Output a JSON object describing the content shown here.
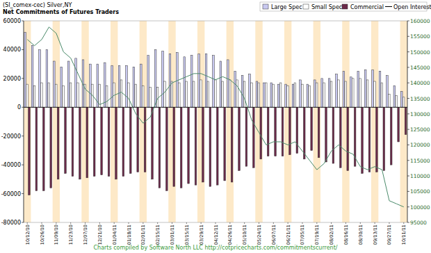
{
  "chart_data": {
    "type": "bar",
    "title": "(SI_comex-cec) Silver,NY",
    "subtitle": "Net Commitments of Futures Traders",
    "annotations": [
      "Charts compiled by Software North LLC  http://cotpricecharts.com/commitmentscurrent/"
    ],
    "categories": [
      "10/12/10",
      null,
      "10/26/10",
      null,
      "11/09/10",
      null,
      "11/23/10",
      null,
      "12/07/10",
      null,
      "12/21/10",
      null,
      "01/04/11",
      null,
      "01/18/11",
      null,
      "02/01/11",
      null,
      "02/15/11",
      null,
      "03/01/11",
      null,
      "03/15/11",
      null,
      "03/29/11",
      null,
      "04/12/11",
      null,
      "04/26/11",
      null,
      "05/10/11",
      null,
      "05/24/11",
      null,
      "06/07/11",
      null,
      "06/21/11",
      null,
      "07/05/11",
      null,
      "07/19/11",
      null,
      "08/02/11",
      null,
      "08/16/11",
      null,
      "08/30/11",
      null,
      "09/13/11",
      null,
      "09/27/11",
      null,
      "10/11/11"
    ],
    "series": [
      {
        "name": "Large Spec",
        "type": "bar",
        "color": "#c8c8f0",
        "values": [
          52000,
          43000,
          40000,
          40000,
          32000,
          28000,
          32000,
          34000,
          33000,
          30000,
          30000,
          31000,
          29000,
          29000,
          29000,
          28000,
          30000,
          36000,
          40000,
          39000,
          37000,
          38000,
          35000,
          36000,
          37000,
          37000,
          36000,
          32000,
          33000,
          25000,
          22000,
          23000,
          18000,
          17000,
          17000,
          16000,
          16000,
          16000,
          19000,
          16000,
          19000,
          20000,
          20000,
          23000,
          25000,
          21000,
          25000,
          26000,
          26000,
          25000,
          22000,
          15000,
          11000
        ]
      },
      {
        "name": "Small Spec",
        "type": "bar",
        "color": "#ffffff",
        "values": [
          16000,
          15000,
          17000,
          17000,
          16000,
          15000,
          17000,
          17000,
          16000,
          16000,
          16000,
          15000,
          17000,
          19000,
          17000,
          16000,
          15000,
          14000,
          14000,
          18000,
          18000,
          17000,
          18000,
          18000,
          19000,
          18000,
          19000,
          18000,
          19000,
          19000,
          18000,
          17000,
          17000,
          17000,
          16000,
          17000,
          15000,
          17000,
          16000,
          15000,
          17000,
          17000,
          18000,
          19000,
          18000,
          20000,
          20000,
          19000,
          18000,
          17000,
          9000,
          8000,
          7000
        ]
      },
      {
        "name": "Commercial",
        "type": "bar",
        "color": "#6b2a4a",
        "values": [
          -61000,
          -58000,
          -58000,
          -56000,
          -50000,
          -46000,
          -48000,
          -50000,
          -49000,
          -48000,
          -47000,
          -48000,
          -50000,
          -48000,
          -46000,
          -45000,
          -45000,
          -50000,
          -56000,
          -58000,
          -55000,
          -56000,
          -53000,
          -54000,
          -52000,
          -55000,
          -54000,
          -51000,
          -52000,
          -44000,
          -41000,
          -42000,
          -36000,
          -34000,
          -34000,
          -34000,
          -33000,
          -32000,
          -36000,
          -30000,
          -35000,
          -38000,
          -39000,
          -42000,
          -44000,
          -41000,
          -46000,
          -45000,
          -45000,
          -44000,
          -40000,
          -24000,
          -19000
        ]
      },
      {
        "name": "Open Interest",
        "type": "line",
        "axis": "y2",
        "color": "#4a8a6a",
        "values": [
          154000,
          152000,
          154000,
          158000,
          156000,
          150000,
          148000,
          143000,
          138000,
          136000,
          133000,
          134000,
          136000,
          137000,
          135000,
          130000,
          127000,
          129000,
          135000,
          137000,
          140000,
          141000,
          142000,
          143000,
          143000,
          142000,
          141000,
          142000,
          141000,
          139000,
          135000,
          128000,
          124000,
          120000,
          121000,
          121000,
          120000,
          121000,
          118000,
          115000,
          112000,
          114000,
          118000,
          120000,
          118000,
          117000,
          113000,
          112000,
          113000,
          112000,
          102000,
          101000,
          100000
        ]
      }
    ],
    "ylim": [
      -80000,
      60000
    ],
    "yticks": [
      -80000,
      -60000,
      -40000,
      -20000,
      0,
      20000,
      40000,
      60000
    ],
    "y2lim": [
      95000,
      160000
    ],
    "y2ticks": [
      95000,
      100000,
      105000,
      110000,
      115000,
      120000,
      125000,
      130000,
      135000,
      140000,
      145000,
      150000,
      155000,
      160000
    ],
    "grid": false,
    "legend": "top-right"
  }
}
